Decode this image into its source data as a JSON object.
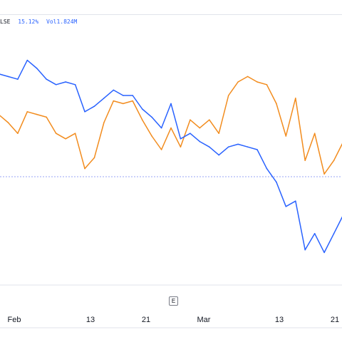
{
  "legend": {
    "symbol": "LSE",
    "change": "15.12%",
    "vol_label": "Vol",
    "vol_value": "1.824M"
  },
  "event_marker": "E",
  "colors": {
    "orange_series": "#f28c1e",
    "blue_series": "#2962ff",
    "reference_line": "#9aa5f5",
    "axis_text": "#131722",
    "grid": "#e0e3eb"
  },
  "chart_data": {
    "type": "line",
    "x_ticks": [
      "Feb",
      "13",
      "21",
      "Mar",
      "13",
      "21"
    ],
    "x": [
      0,
      1,
      2,
      3,
      4,
      5,
      6,
      7,
      8,
      9,
      10,
      11,
      12,
      13,
      14,
      15,
      16,
      17,
      18,
      19,
      20,
      21,
      22,
      23,
      24,
      25,
      26,
      27,
      28,
      29,
      30,
      31,
      32,
      33,
      34,
      35,
      36
    ],
    "series": [
      {
        "color": "#f28c1e",
        "values": [
          63,
          60,
          56,
          64,
          63,
          62,
          56,
          54,
          56,
          43,
          47,
          60,
          68,
          67,
          68,
          61,
          55,
          50,
          58,
          51,
          61,
          58,
          61,
          56,
          70,
          75,
          77,
          75,
          74,
          67,
          55,
          69,
          46,
          56,
          41,
          46,
          53
        ]
      },
      {
        "color": "#2962ff",
        "values": [
          78,
          77,
          76,
          83,
          80,
          76,
          74,
          75,
          74,
          64,
          66,
          69,
          72,
          70,
          70,
          65,
          62,
          58,
          67,
          54,
          56,
          53,
          51,
          48,
          51,
          52,
          51,
          50,
          43,
          38,
          29,
          31,
          13,
          19,
          12,
          19,
          26
        ]
      }
    ],
    "reference_line": 40,
    "ylim": [
      0,
      100
    ],
    "grid": false,
    "legend": "top-left"
  }
}
